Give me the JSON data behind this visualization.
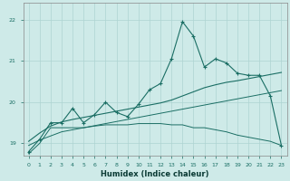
{
  "x": [
    0,
    1,
    2,
    3,
    4,
    5,
    6,
    7,
    8,
    9,
    10,
    11,
    12,
    13,
    14,
    15,
    16,
    17,
    18,
    19,
    20,
    21,
    22,
    23
  ],
  "line1": [
    18.8,
    19.1,
    19.5,
    19.5,
    19.85,
    19.5,
    19.7,
    20.0,
    19.75,
    19.65,
    19.95,
    20.3,
    20.45,
    21.05,
    21.95,
    21.6,
    20.85,
    21.05,
    20.95,
    20.7,
    20.65,
    20.65,
    20.15,
    18.95
  ],
  "line2_min": [
    18.75,
    19.0,
    19.38,
    19.38,
    19.38,
    19.38,
    19.42,
    19.45,
    19.45,
    19.45,
    19.48,
    19.48,
    19.48,
    19.45,
    19.45,
    19.38,
    19.38,
    19.33,
    19.28,
    19.2,
    19.15,
    19.1,
    19.05,
    18.95
  ],
  "trend1": [
    19.05,
    19.25,
    19.42,
    19.52,
    19.58,
    19.63,
    19.68,
    19.73,
    19.78,
    19.83,
    19.88,
    19.93,
    19.98,
    20.05,
    20.15,
    20.25,
    20.35,
    20.42,
    20.48,
    20.52,
    20.57,
    20.62,
    20.67,
    20.72
  ],
  "trend2": [
    18.95,
    19.08,
    19.18,
    19.28,
    19.33,
    19.38,
    19.43,
    19.48,
    19.53,
    19.58,
    19.63,
    19.68,
    19.73,
    19.78,
    19.83,
    19.88,
    19.93,
    19.98,
    20.03,
    20.08,
    20.13,
    20.18,
    20.23,
    20.28
  ],
  "bg_color": "#ceeae8",
  "grid_color": "#aed4d2",
  "line_color": "#1a6e64",
  "ylabel_vals": [
    19,
    20,
    21,
    22
  ],
  "xlabel_vals": [
    0,
    1,
    2,
    3,
    4,
    5,
    6,
    7,
    8,
    9,
    10,
    11,
    12,
    13,
    14,
    15,
    16,
    17,
    18,
    19,
    20,
    21,
    22,
    23
  ],
  "xlabel": "Humidex (Indice chaleur)",
  "ylim": [
    18.7,
    22.4
  ],
  "xlim": [
    -0.5,
    23.5
  ]
}
